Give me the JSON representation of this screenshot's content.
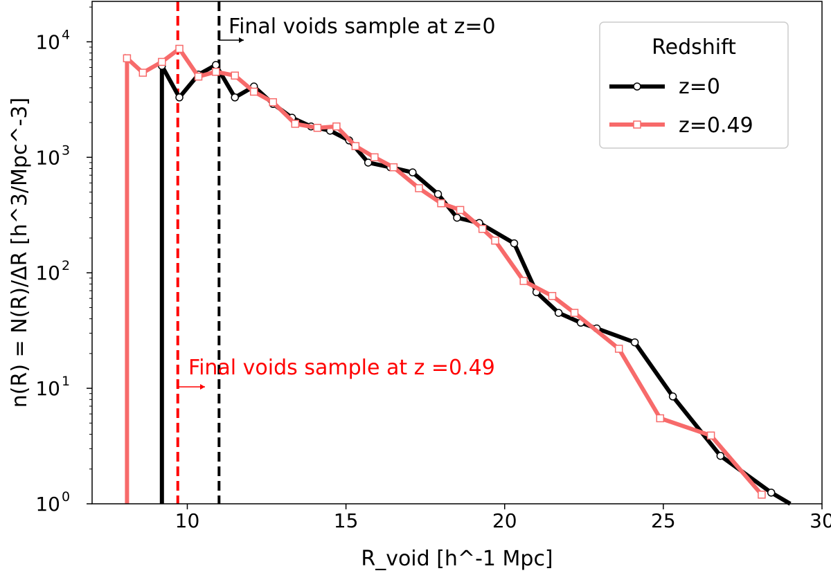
{
  "chart_data": {
    "type": "line",
    "title": "",
    "xlabel": "R_void [h^-1 Mpc]",
    "ylabel": "n(R) = N(R)/ΔR [h^3/Mpc^-3]",
    "xlim": [
      7,
      30
    ],
    "ylim_log10": [
      0,
      4.35
    ],
    "yscale": "log",
    "grid": false,
    "x_ticks": [
      10,
      15,
      20,
      25,
      30
    ],
    "x_tick_labels": [
      "10",
      "15",
      "20",
      "25",
      "30"
    ],
    "y_ticks": [
      1,
      10,
      100,
      1000,
      10000
    ],
    "y_tick_bases": [
      "10",
      "10",
      "10",
      "10",
      "10"
    ],
    "y_tick_exps": [
      "0",
      "1",
      "2",
      "3",
      "4"
    ],
    "legend": {
      "title": "Redshift",
      "position": "top-right",
      "entries": [
        "z=0",
        "z=0.49"
      ]
    },
    "series": [
      {
        "name": "z=0",
        "color": "#000000",
        "marker": "circle",
        "x": [
          9.2,
          9.2,
          9.75,
          10.35,
          10.9,
          11.5,
          12.1,
          12.7,
          13.3,
          13.9,
          14.5,
          15.1,
          15.7,
          16.4,
          17.1,
          17.9,
          18.5,
          19.2,
          20.3,
          21.0,
          21.7,
          22.4,
          22.9,
          24.1,
          25.3,
          26.8,
          28.4,
          29.0
        ],
        "y": [
          1,
          6200,
          3300,
          5200,
          6300,
          3300,
          4100,
          2900,
          2200,
          1850,
          1700,
          1400,
          900,
          820,
          740,
          480,
          300,
          270,
          180,
          68,
          45,
          37,
          33,
          25,
          8.5,
          2.6,
          1.25,
          1
        ],
        "marker_flags": [
          0,
          1,
          1,
          1,
          1,
          1,
          1,
          1,
          1,
          1,
          1,
          1,
          1,
          1,
          1,
          1,
          1,
          1,
          1,
          1,
          1,
          1,
          1,
          1,
          1,
          1,
          1,
          0
        ]
      },
      {
        "name": "z=0.49",
        "color": "#f76a6a",
        "marker": "square",
        "x": [
          8.1,
          8.1,
          8.6,
          9.2,
          9.75,
          10.35,
          10.9,
          11.5,
          12.1,
          12.7,
          13.4,
          14.1,
          14.7,
          15.3,
          15.9,
          16.5,
          17.3,
          18.0,
          18.6,
          19.3,
          19.7,
          20.6,
          21.5,
          22.2,
          23.6,
          24.9,
          26.5,
          28.1
        ],
        "y": [
          1,
          7200,
          5400,
          6700,
          8700,
          5000,
          5500,
          5100,
          3700,
          3000,
          1950,
          1800,
          1850,
          1250,
          1000,
          820,
          540,
          400,
          350,
          240,
          190,
          85,
          63,
          45,
          22,
          5.5,
          3.9,
          1.2
        ],
        "marker_flags": [
          0,
          1,
          1,
          1,
          1,
          1,
          1,
          1,
          1,
          1,
          1,
          1,
          1,
          1,
          1,
          1,
          1,
          1,
          1,
          1,
          1,
          1,
          1,
          1,
          1,
          1,
          1,
          1
        ]
      }
    ],
    "vlines": [
      {
        "x": 9.7,
        "color": "#ff0000",
        "style": "dashed"
      },
      {
        "x": 11.0,
        "color": "#000000",
        "style": "dashed"
      }
    ],
    "annotations": [
      {
        "text": "Final voids sample at z=0",
        "color": "#000000",
        "x": 11.0,
        "y": 10000,
        "arrow_x_end": 12.1
      },
      {
        "text": "Final voids sample at z =0.49",
        "color": "#ff0000",
        "x": 9.7,
        "y": 10,
        "arrow_x_end": 10.85
      }
    ]
  }
}
